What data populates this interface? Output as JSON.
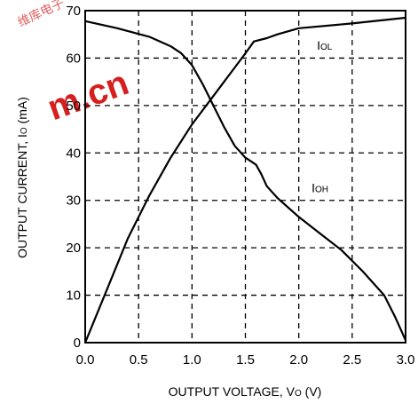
{
  "chart_data": {
    "type": "line",
    "xlabel_main": "OUTPUT VOLTAGE, V",
    "xlabel_sub": "O",
    "xlabel_unit": " (V)",
    "ylabel_main": "OUTPUT CURRENT, I",
    "ylabel_sub": "O",
    "ylabel_unit": " (mA)",
    "xlim": [
      0,
      3.0
    ],
    "ylim": [
      0,
      70
    ],
    "grid": true,
    "x_ticks": [
      {
        "value": 0.0,
        "label": "0.0"
      },
      {
        "value": 0.5,
        "label": "0.5"
      },
      {
        "value": 1.0,
        "label": "1.0"
      },
      {
        "value": 1.5,
        "label": "1.5"
      },
      {
        "value": 2.0,
        "label": "2.0"
      },
      {
        "value": 2.5,
        "label": "2.5"
      },
      {
        "value": 3.0,
        "label": "3.0"
      }
    ],
    "y_ticks": [
      {
        "value": 0,
        "label": "0"
      },
      {
        "value": 10,
        "label": "10"
      },
      {
        "value": 20,
        "label": "20"
      },
      {
        "value": 30,
        "label": "30"
      },
      {
        "value": 40,
        "label": "40"
      },
      {
        "value": 50,
        "label": "50"
      },
      {
        "value": 60,
        "label": "60"
      },
      {
        "value": 70,
        "label": "70"
      }
    ],
    "series": [
      {
        "label_main": "I",
        "label_sub": "OL",
        "label_at": [
          2.17,
          61.8
        ],
        "points": [
          [
            0,
            0
          ],
          [
            0.2,
            11
          ],
          [
            0.4,
            22
          ],
          [
            0.6,
            31
          ],
          [
            0.8,
            39
          ],
          [
            1.0,
            46
          ],
          [
            1.2,
            52
          ],
          [
            1.4,
            58
          ],
          [
            1.5,
            61
          ],
          [
            1.58,
            63.5
          ],
          [
            1.7,
            64.2
          ],
          [
            1.8,
            65
          ],
          [
            2.0,
            66.3
          ],
          [
            2.5,
            67.3
          ],
          [
            3.0,
            68.5
          ]
        ]
      },
      {
        "label_main": "I",
        "label_sub": "OH",
        "label_at": [
          2.12,
          31.7
        ],
        "points": [
          [
            0,
            67.8
          ],
          [
            0.3,
            66.3
          ],
          [
            0.6,
            64.5
          ],
          [
            0.8,
            62.5
          ],
          [
            0.9,
            61
          ],
          [
            1.0,
            58.5
          ],
          [
            1.1,
            54.5
          ],
          [
            1.2,
            50
          ],
          [
            1.3,
            45.5
          ],
          [
            1.4,
            41.5
          ],
          [
            1.5,
            39
          ],
          [
            1.6,
            37.5
          ],
          [
            1.65,
            35.5
          ],
          [
            1.7,
            33
          ],
          [
            1.8,
            30.5
          ],
          [
            2.0,
            26.5
          ],
          [
            2.2,
            23
          ],
          [
            2.4,
            19.5
          ],
          [
            2.6,
            15
          ],
          [
            2.8,
            10
          ],
          [
            2.9,
            5.5
          ],
          [
            3.0,
            0.5
          ]
        ]
      }
    ]
  },
  "watermark": {
    "main": "m.cn",
    "cn": "维库电子"
  }
}
